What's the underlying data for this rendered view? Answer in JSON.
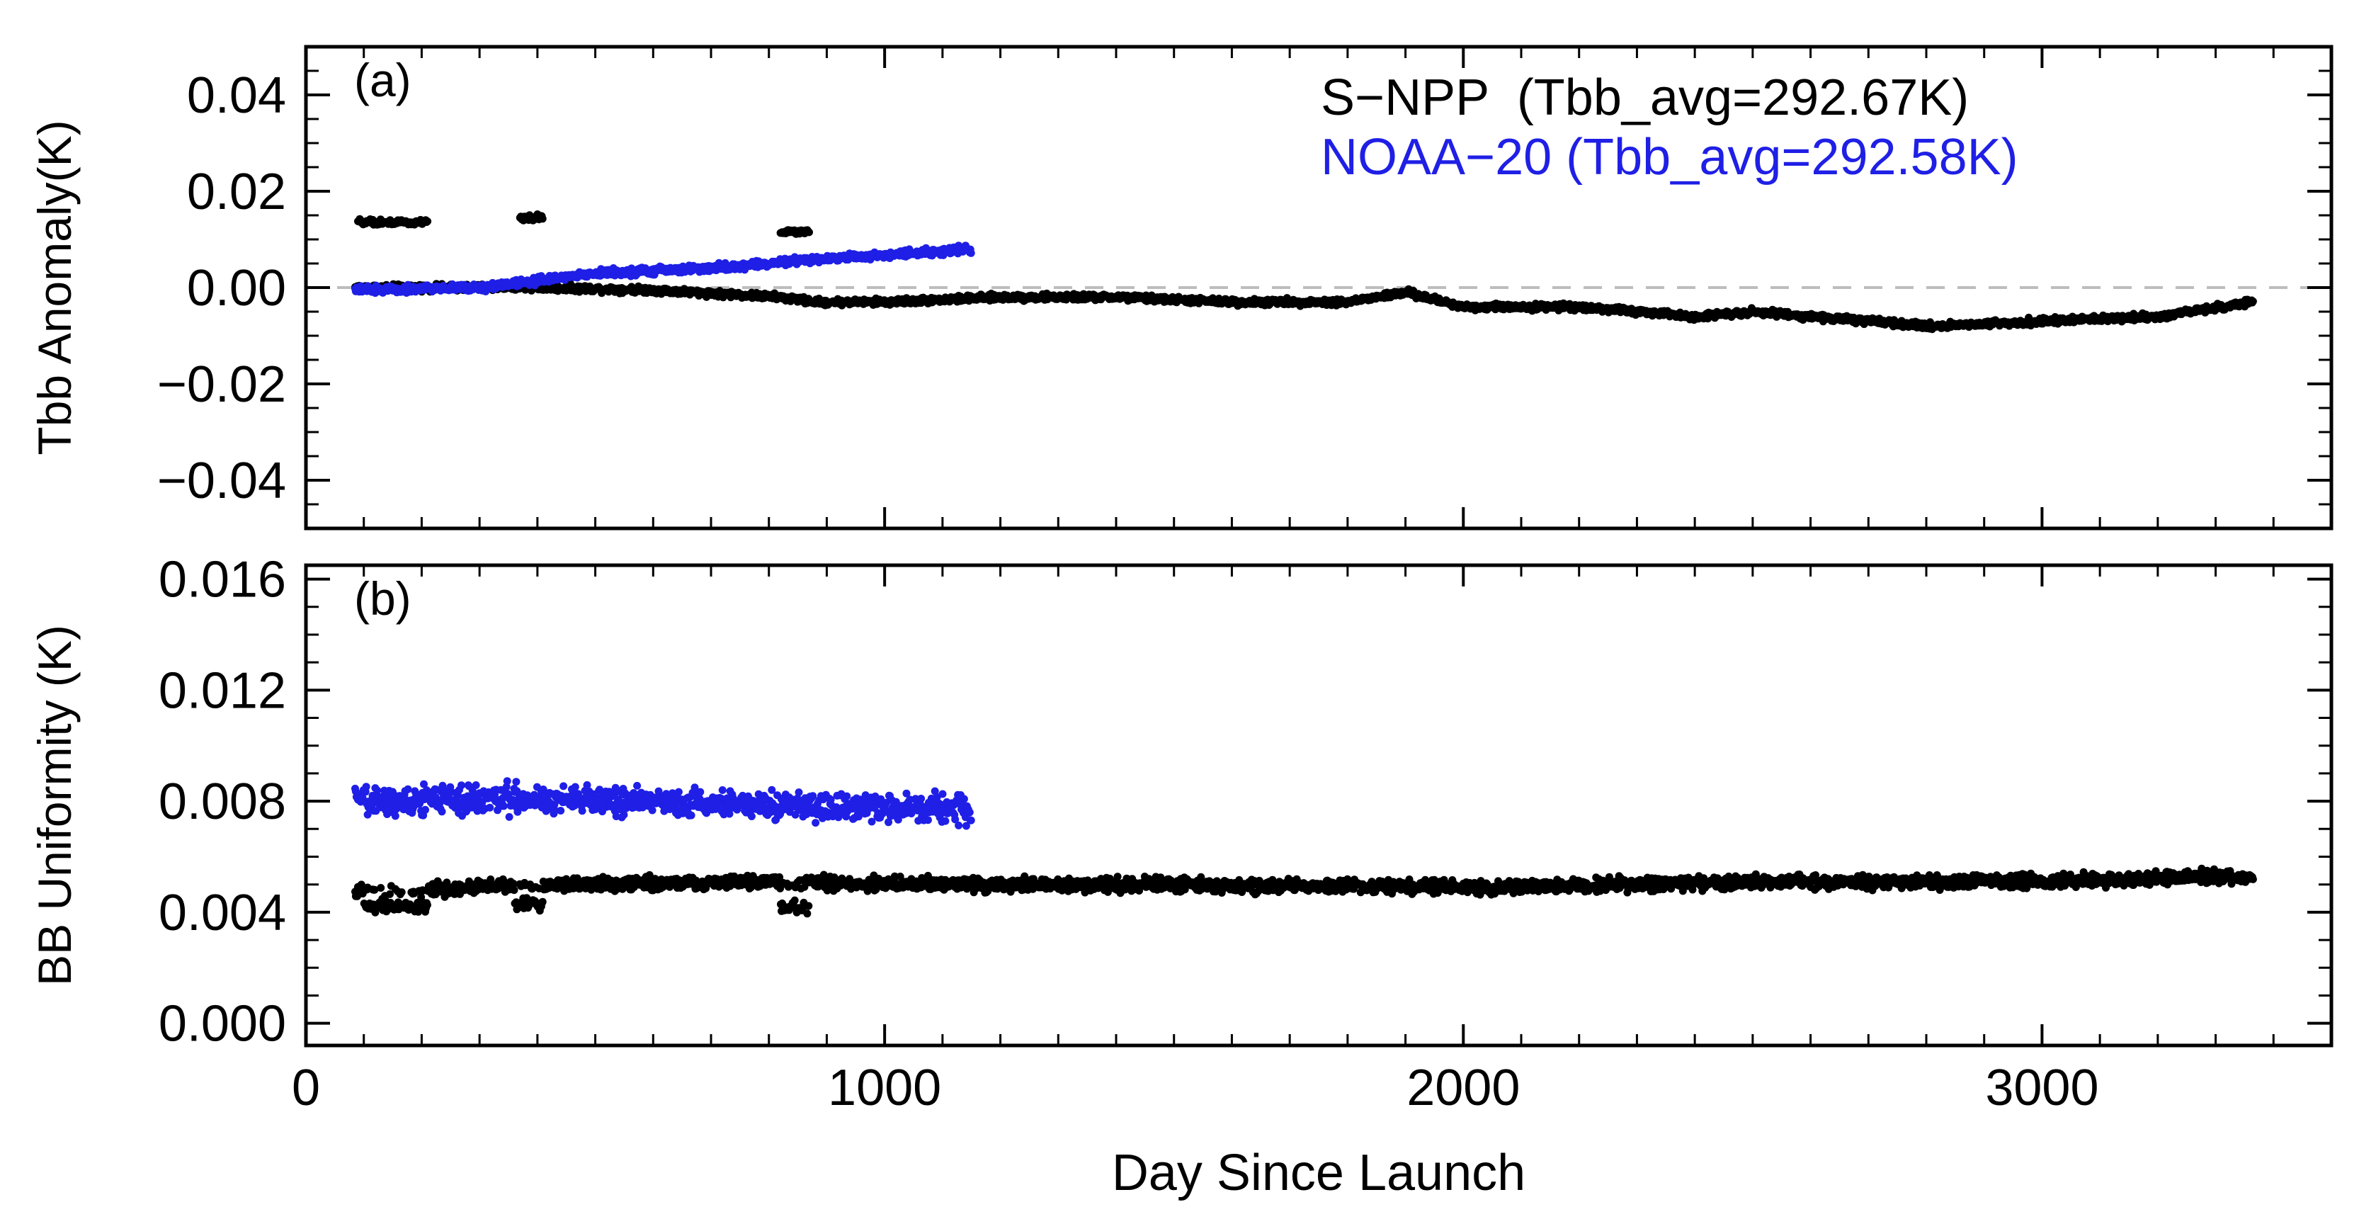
{
  "colors": {
    "snpp": "#000000",
    "noaa20": "#1f1fe6",
    "zero_line": "#bdbdbd",
    "axes": "#000000"
  },
  "chart_data": [
    {
      "type": "scatter",
      "panel_label": "(a)",
      "ylabel": "Tbb Anomaly(K)",
      "xlabel": "",
      "xlim": [
        0,
        3500
      ],
      "ylim": [
        -0.05,
        0.05
      ],
      "x_ticks": [
        0,
        1000,
        2000,
        3000
      ],
      "x_minor_step": 100,
      "y_ticks": [
        -0.04,
        -0.02,
        0.0,
        0.02,
        0.04
      ],
      "y_tick_labels": [
        "−0.04",
        "−0.02",
        "0.00",
        "0.02",
        "0.04"
      ],
      "y_minor_step": 0.005,
      "reference_line": 0.0,
      "legend": [
        {
          "name": "S−NPP  (Tbb_avg=292.67K)",
          "color": "#000000"
        },
        {
          "name": "NOAA−20 (Tbb_avg=292.58K)",
          "color": "#1f1fe6"
        }
      ],
      "series": [
        {
          "name": "S-NPP",
          "color": "#000000",
          "x_range": [
            85,
            3365
          ],
          "noise": 0.0008,
          "nodes": [
            [
              85,
              0.0
            ],
            [
              200,
              0.0
            ],
            [
              400,
              0.0
            ],
            [
              600,
              -0.0005
            ],
            [
              820,
              -0.002
            ],
            [
              880,
              -0.003
            ],
            [
              1000,
              -0.003
            ],
            [
              1200,
              -0.002
            ],
            [
              1400,
              -0.002
            ],
            [
              1600,
              -0.003
            ],
            [
              1800,
              -0.003
            ],
            [
              1900,
              -0.001
            ],
            [
              2000,
              -0.004
            ],
            [
              2200,
              -0.004
            ],
            [
              2400,
              -0.006
            ],
            [
              2500,
              -0.005
            ],
            [
              2600,
              -0.006
            ],
            [
              2800,
              -0.008
            ],
            [
              3000,
              -0.007
            ],
            [
              3200,
              -0.006
            ],
            [
              3365,
              -0.003
            ]
          ],
          "clusters": [
            {
              "x0": 90,
              "x1": 210,
              "y": 0.0135
            },
            {
              "x0": 370,
              "x1": 410,
              "y": 0.0145
            },
            {
              "x0": 820,
              "x1": 870,
              "y": 0.0115
            }
          ]
        },
        {
          "name": "NOAA-20",
          "color": "#1f1fe6",
          "x_range": [
            85,
            1150
          ],
          "noise": 0.0009,
          "nodes": [
            [
              85,
              -0.0005
            ],
            [
              300,
              0.0
            ],
            [
              500,
              0.003
            ],
            [
              700,
              0.004
            ],
            [
              900,
              0.006
            ],
            [
              1150,
              0.008
            ]
          ]
        }
      ]
    },
    {
      "type": "scatter",
      "panel_label": "(b)",
      "ylabel": "BB Uniformity (K)",
      "xlabel": "Day Since Launch",
      "xlim": [
        0,
        3500
      ],
      "ylim": [
        -0.0008,
        0.0165
      ],
      "x_ticks": [
        0,
        1000,
        2000,
        3000
      ],
      "x_tick_labels": [
        "0",
        "1000",
        "2000",
        "3000"
      ],
      "x_minor_step": 100,
      "y_ticks": [
        0.0,
        0.004,
        0.008,
        0.012,
        0.016
      ],
      "y_tick_labels": [
        "0.000",
        "0.004",
        "0.008",
        "0.012",
        "0.016"
      ],
      "y_minor_step": 0.001,
      "series": [
        {
          "name": "S-NPP",
          "color": "#000000",
          "x_range": [
            85,
            3365
          ],
          "noise": 0.0003,
          "nodes": [
            [
              85,
              0.0048
            ],
            [
              200,
              0.0048
            ],
            [
              400,
              0.005
            ],
            [
              800,
              0.0051
            ],
            [
              1000,
              0.005
            ],
            [
              1500,
              0.005
            ],
            [
              2000,
              0.0049
            ],
            [
              2500,
              0.0051
            ],
            [
              3000,
              0.0051
            ],
            [
              3365,
              0.0053
            ]
          ],
          "dips": [
            {
              "x0": 100,
              "x1": 210,
              "y": 0.0042
            },
            {
              "x0": 360,
              "x1": 410,
              "y": 0.0043
            },
            {
              "x0": 820,
              "x1": 870,
              "y": 0.0042
            }
          ]
        },
        {
          "name": "NOAA-20",
          "color": "#1f1fe6",
          "x_range": [
            85,
            1150
          ],
          "noise": 0.0006,
          "nodes": [
            [
              85,
              0.008
            ],
            [
              300,
              0.0081
            ],
            [
              600,
              0.008
            ],
            [
              900,
              0.0078
            ],
            [
              1150,
              0.0077
            ]
          ]
        }
      ]
    }
  ]
}
